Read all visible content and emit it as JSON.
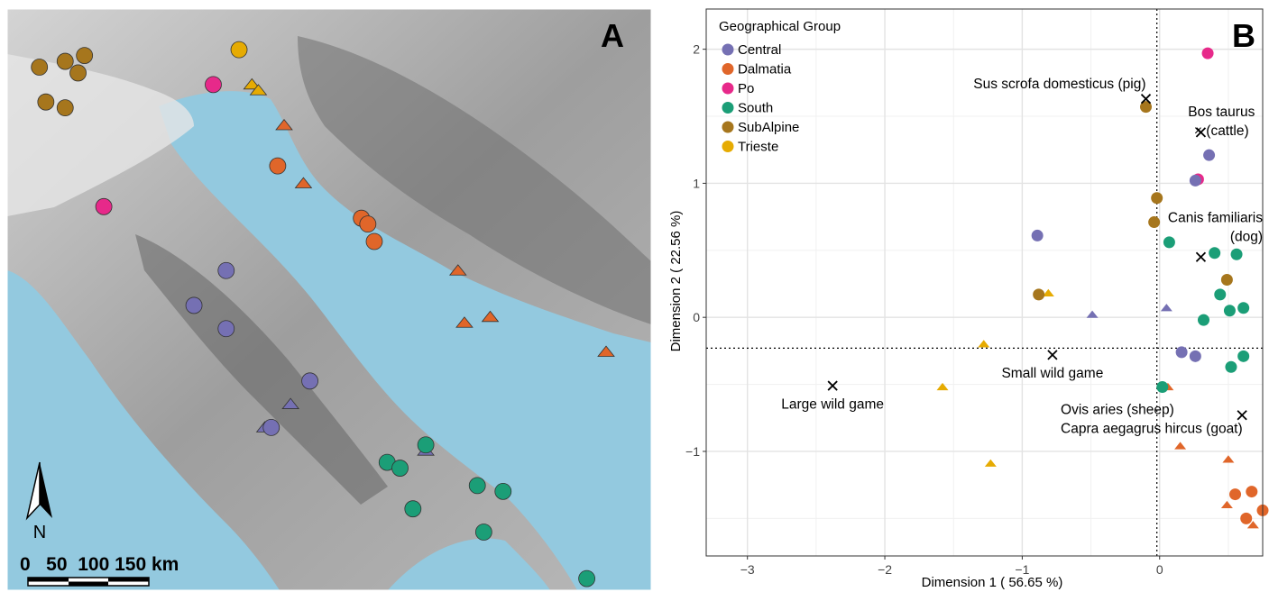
{
  "panel_a": {
    "label": "A",
    "north_label": "N",
    "scale_text": "0   50  100 150 km",
    "colors": {
      "sea": "#93c9df",
      "land_light": "#d9d9d9",
      "land_mid": "#a9a9a9",
      "land_dark": "#6e6e6e"
    },
    "sites": [
      {
        "group": "SubAlpine",
        "shape": "circle",
        "lon": 0.05,
        "lat": 0.1
      },
      {
        "group": "SubAlpine",
        "shape": "circle",
        "lon": 0.09,
        "lat": 0.09
      },
      {
        "group": "SubAlpine",
        "shape": "circle",
        "lon": 0.12,
        "lat": 0.08
      },
      {
        "group": "SubAlpine",
        "shape": "circle",
        "lon": 0.11,
        "lat": 0.11
      },
      {
        "group": "SubAlpine",
        "shape": "circle",
        "lon": 0.06,
        "lat": 0.16
      },
      {
        "group": "SubAlpine",
        "shape": "circle",
        "lon": 0.09,
        "lat": 0.17
      },
      {
        "group": "Trieste",
        "shape": "circle",
        "lon": 0.36,
        "lat": 0.07
      },
      {
        "group": "Trieste",
        "shape": "triangle",
        "lon": 0.38,
        "lat": 0.13
      },
      {
        "group": "Trieste",
        "shape": "triangle",
        "lon": 0.39,
        "lat": 0.14
      },
      {
        "group": "Po",
        "shape": "circle",
        "lon": 0.32,
        "lat": 0.13
      },
      {
        "group": "Po",
        "shape": "circle",
        "lon": 0.15,
        "lat": 0.34
      },
      {
        "group": "Dalmatia",
        "shape": "triangle",
        "lon": 0.43,
        "lat": 0.2
      },
      {
        "group": "Dalmatia",
        "shape": "circle",
        "lon": 0.42,
        "lat": 0.27
      },
      {
        "group": "Dalmatia",
        "shape": "triangle",
        "lon": 0.46,
        "lat": 0.3
      },
      {
        "group": "Dalmatia",
        "shape": "circle",
        "lon": 0.55,
        "lat": 0.36
      },
      {
        "group": "Dalmatia",
        "shape": "circle",
        "lon": 0.56,
        "lat": 0.37
      },
      {
        "group": "Dalmatia",
        "shape": "circle",
        "lon": 0.57,
        "lat": 0.4
      },
      {
        "group": "Dalmatia",
        "shape": "triangle",
        "lon": 0.7,
        "lat": 0.45
      },
      {
        "group": "Dalmatia",
        "shape": "triangle",
        "lon": 0.71,
        "lat": 0.54
      },
      {
        "group": "Dalmatia",
        "shape": "triangle",
        "lon": 0.75,
        "lat": 0.53
      },
      {
        "group": "Dalmatia",
        "shape": "triangle",
        "lon": 0.93,
        "lat": 0.59
      },
      {
        "group": "Central",
        "shape": "circle",
        "lon": 0.34,
        "lat": 0.45
      },
      {
        "group": "Central",
        "shape": "circle",
        "lon": 0.29,
        "lat": 0.51
      },
      {
        "group": "Central",
        "shape": "circle",
        "lon": 0.34,
        "lat": 0.55
      },
      {
        "group": "Central",
        "shape": "circle",
        "lon": 0.47,
        "lat": 0.64
      },
      {
        "group": "Central",
        "shape": "triangle",
        "lon": 0.44,
        "lat": 0.68
      },
      {
        "group": "Central",
        "shape": "triangle",
        "lon": 0.4,
        "lat": 0.72
      },
      {
        "group": "Central",
        "shape": "circle",
        "lon": 0.41,
        "lat": 0.72
      },
      {
        "group": "Central",
        "shape": "triangle",
        "lon": 0.65,
        "lat": 0.76
      },
      {
        "group": "South",
        "shape": "circle",
        "lon": 0.65,
        "lat": 0.75
      },
      {
        "group": "South",
        "shape": "circle",
        "lon": 0.59,
        "lat": 0.78
      },
      {
        "group": "South",
        "shape": "circle",
        "lon": 0.61,
        "lat": 0.79
      },
      {
        "group": "South",
        "shape": "circle",
        "lon": 0.73,
        "lat": 0.82
      },
      {
        "group": "South",
        "shape": "circle",
        "lon": 0.77,
        "lat": 0.83
      },
      {
        "group": "South",
        "shape": "circle",
        "lon": 0.63,
        "lat": 0.86
      },
      {
        "group": "South",
        "shape": "circle",
        "lon": 0.74,
        "lat": 0.9
      },
      {
        "group": "South",
        "shape": "circle",
        "lon": 0.9,
        "lat": 0.98
      }
    ]
  },
  "chart_data": {
    "type": "scatter",
    "panel_label": "B",
    "xlabel": "Dimension 1 ( 56.65 %)",
    "ylabel": "Dimension 2 ( 22.56 %)",
    "xlim": [
      -3.3,
      0.75
    ],
    "ylim": [
      -1.78,
      2.3
    ],
    "x_ticks": [
      -3,
      -2,
      -1,
      0
    ],
    "y_ticks": [
      -1,
      0,
      1,
      2
    ],
    "x_tick_labels": [
      "−3",
      "−2",
      "−1",
      "0"
    ],
    "y_tick_labels": [
      "−1",
      "0",
      "1",
      "2"
    ],
    "grid": true,
    "ref_lines": {
      "x": -0.02,
      "y": -0.23
    },
    "legend": {
      "title": "Geographical Group",
      "position": "top-left",
      "entries": [
        {
          "name": "Central",
          "color": "#7570b3"
        },
        {
          "name": "Dalmatia",
          "color": "#e0662a"
        },
        {
          "name": "Po",
          "color": "#e7298a"
        },
        {
          "name": "South",
          "color": "#1b9e77"
        },
        {
          "name": "SubAlpine",
          "color": "#a6761d"
        },
        {
          "name": "Trieste",
          "color": "#e6ab02"
        }
      ]
    },
    "points": [
      {
        "group": "Po",
        "shape": "circle",
        "x": 0.35,
        "y": 1.97
      },
      {
        "group": "SubAlpine",
        "shape": "circle",
        "x": -0.1,
        "y": 1.57
      },
      {
        "group": "Central",
        "shape": "circle",
        "x": 0.36,
        "y": 1.21
      },
      {
        "group": "Po",
        "shape": "circle",
        "x": 0.28,
        "y": 1.03
      },
      {
        "group": "Central",
        "shape": "circle",
        "x": 0.26,
        "y": 1.02
      },
      {
        "group": "SubAlpine",
        "shape": "circle",
        "x": -0.02,
        "y": 0.89
      },
      {
        "group": "SubAlpine",
        "shape": "circle",
        "x": -0.04,
        "y": 0.71
      },
      {
        "group": "Central",
        "shape": "circle",
        "x": -0.89,
        "y": 0.61
      },
      {
        "group": "South",
        "shape": "circle",
        "x": 0.07,
        "y": 0.56
      },
      {
        "group": "South",
        "shape": "circle",
        "x": 0.4,
        "y": 0.48
      },
      {
        "group": "South",
        "shape": "circle",
        "x": 0.56,
        "y": 0.47
      },
      {
        "group": "SubAlpine",
        "shape": "circle",
        "x": 0.49,
        "y": 0.28
      },
      {
        "group": "Trieste",
        "shape": "triangle",
        "x": -0.81,
        "y": 0.18
      },
      {
        "group": "SubAlpine",
        "shape": "circle",
        "x": -0.88,
        "y": 0.17
      },
      {
        "group": "South",
        "shape": "circle",
        "x": 0.44,
        "y": 0.17
      },
      {
        "group": "South",
        "shape": "circle",
        "x": 0.51,
        "y": 0.05
      },
      {
        "group": "South",
        "shape": "circle",
        "x": 0.61,
        "y": 0.07
      },
      {
        "group": "Central",
        "shape": "triangle",
        "x": 0.05,
        "y": 0.07
      },
      {
        "group": "Central",
        "shape": "triangle",
        "x": -0.49,
        "y": 0.02
      },
      {
        "group": "South",
        "shape": "circle",
        "x": 0.32,
        "y": -0.02
      },
      {
        "group": "Trieste",
        "shape": "triangle",
        "x": -1.28,
        "y": -0.2
      },
      {
        "group": "Central",
        "shape": "circle",
        "x": 0.16,
        "y": -0.26
      },
      {
        "group": "Central",
        "shape": "circle",
        "x": 0.26,
        "y": -0.29
      },
      {
        "group": "South",
        "shape": "circle",
        "x": 0.61,
        "y": -0.29
      },
      {
        "group": "South",
        "shape": "circle",
        "x": 0.52,
        "y": -0.37
      },
      {
        "group": "Dalmatia",
        "shape": "triangle",
        "x": 0.06,
        "y": -0.52
      },
      {
        "group": "South",
        "shape": "circle",
        "x": 0.02,
        "y": -0.52
      },
      {
        "group": "Trieste",
        "shape": "triangle",
        "x": -1.58,
        "y": -0.52
      },
      {
        "group": "Dalmatia",
        "shape": "triangle",
        "x": 0.15,
        "y": -0.96
      },
      {
        "group": "Trieste",
        "shape": "triangle",
        "x": -1.23,
        "y": -1.09
      },
      {
        "group": "Dalmatia",
        "shape": "triangle",
        "x": 0.5,
        "y": -1.06
      },
      {
        "group": "Dalmatia",
        "shape": "circle",
        "x": 0.67,
        "y": -1.3
      },
      {
        "group": "Dalmatia",
        "shape": "circle",
        "x": 0.55,
        "y": -1.32
      },
      {
        "group": "Dalmatia",
        "shape": "triangle",
        "x": 0.49,
        "y": -1.4
      },
      {
        "group": "Dalmatia",
        "shape": "circle",
        "x": 0.75,
        "y": -1.44
      },
      {
        "group": "Dalmatia",
        "shape": "circle",
        "x": 0.63,
        "y": -1.5
      },
      {
        "group": "Dalmatia",
        "shape": "triangle",
        "x": 0.68,
        "y": -1.55
      }
    ],
    "species": [
      {
        "label": "Sus scrofa domesticus (pig)",
        "x": -0.1,
        "y": 1.63,
        "lines": [
          "Sus scrofa domesticus (pig)"
        ],
        "anchor": "end",
        "lx": -0.1,
        "ly": 1.71
      },
      {
        "label": "Bos taurus (cattle)",
        "x": 0.3,
        "y": 1.38,
        "lines": [
          "Bos taurus",
          "× (cattle)"
        ],
        "anchor": "middle",
        "lx": 0.45,
        "ly": 1.5
      },
      {
        "label": "Canis familiaris (dog)",
        "x": 0.3,
        "y": 0.45,
        "lines": [
          "Canis familiaris",
          "(dog)"
        ],
        "anchor": "end",
        "lx": 0.75,
        "ly": 0.71
      },
      {
        "label": "Small wild game",
        "x": -0.78,
        "y": -0.28,
        "lines": [
          "Small wild game"
        ],
        "anchor": "middle",
        "lx": -0.78,
        "ly": -0.45
      },
      {
        "label": "Large wild game",
        "x": -2.38,
        "y": -0.51,
        "lines": [
          "Large wild game"
        ],
        "anchor": "middle",
        "lx": -2.38,
        "ly": -0.68
      },
      {
        "label": "Ovis aries (sheep) Capra aegagrus hircus (goat)",
        "x": 0.6,
        "y": -0.73,
        "lines": [
          "Ovis aries (sheep)",
          "Capra aegagrus hircus (goat)"
        ],
        "anchor": "start",
        "lx": -0.72,
        "ly": -0.72
      }
    ]
  }
}
